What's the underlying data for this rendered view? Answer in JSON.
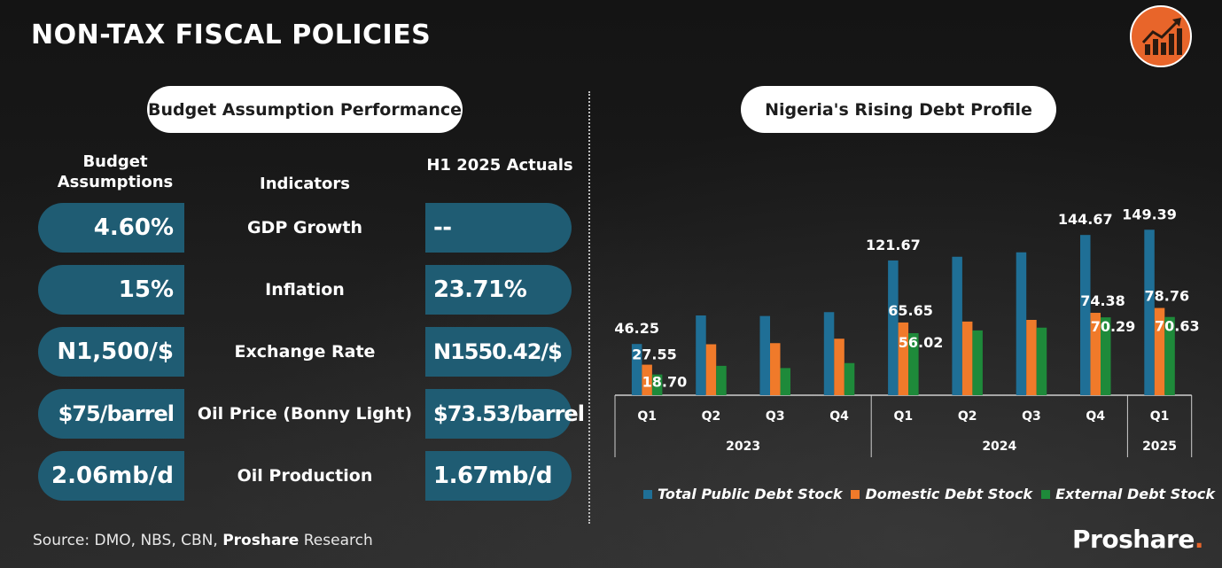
{
  "page": {
    "title": "NON-TAX FISCAL POLICIES",
    "logo_icon": "growth-chart-icon",
    "brand_name": "Proshare",
    "brand_dot": ".",
    "source_prefix": "Source: DMO, NBS, CBN, ",
    "source_bold": "Proshare",
    "source_suffix": " Research"
  },
  "budget_table": {
    "title": "Budget Assumption Performance",
    "col_budget": "Budget Assumptions",
    "col_indicators": "Indicators",
    "col_actuals": "H1 2025 Actuals",
    "rows": [
      {
        "budget": "4.60%",
        "indicator": "GDP Growth",
        "actual": "--"
      },
      {
        "budget": "15%",
        "indicator": "Inflation",
        "actual": "23.71%"
      },
      {
        "budget": "N1,500/$",
        "indicator": "Exchange Rate",
        "actual": "N1550.42/$"
      },
      {
        "budget": "$75/barrel",
        "indicator": "Oil Price (Bonny Light)",
        "actual": "$73.53/barrel"
      },
      {
        "budget": "2.06mb/d",
        "indicator": "Oil Production",
        "actual": "1.67mb/d"
      }
    ],
    "accent_color": "#1f5c73"
  },
  "chart_data": {
    "type": "bar",
    "title": "Nigeria's Rising Debt Profile",
    "categories": [
      "Q1",
      "Q2",
      "Q3",
      "Q4",
      "Q1",
      "Q2",
      "Q3",
      "Q4",
      "Q1"
    ],
    "groups": [
      {
        "label": "2023",
        "span": 4
      },
      {
        "label": "2024",
        "span": 4
      },
      {
        "label": "2025",
        "span": 1
      }
    ],
    "series": [
      {
        "name": "Total Public Debt Stock",
        "color": "#1f6f96",
        "values": [
          46.25,
          72.0,
          71.5,
          75.0,
          121.67,
          125.0,
          129.0,
          144.67,
          149.39
        ]
      },
      {
        "name": "Domestic Debt Stock",
        "color": "#f07a2a",
        "values": [
          27.55,
          46.0,
          47.0,
          51.0,
          65.65,
          66.5,
          68.0,
          74.38,
          78.76
        ]
      },
      {
        "name": "External Debt Stock",
        "color": "#1e8a3a",
        "values": [
          18.7,
          26.5,
          24.5,
          29.0,
          56.02,
          58.5,
          61.0,
          70.29,
          70.63
        ]
      }
    ],
    "data_labels": [
      {
        "category_index": 0,
        "labels": [
          "46.25",
          "27.55",
          "18.70"
        ]
      },
      {
        "category_index": 4,
        "labels": [
          "121.67",
          "65.65",
          "56.02"
        ]
      },
      {
        "category_index": 7,
        "labels": [
          "144.67",
          "74.38",
          "70.29"
        ]
      },
      {
        "category_index": 8,
        "labels": [
          "149.39",
          "78.76",
          "70.63"
        ]
      }
    ],
    "ylim": [
      0,
      160
    ],
    "grid": false,
    "legend_position": "bottom"
  }
}
